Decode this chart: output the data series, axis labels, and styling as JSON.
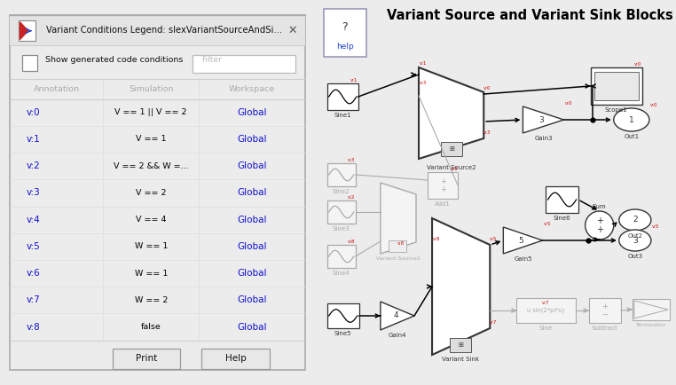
{
  "title": "Variant Source and Variant Sink Blocks",
  "dialog_title": "Variant Conditions Legend: slexVariantSourceAndSi...",
  "checkbox_label": "Show generated code conditions",
  "filter_placeholder": "Filter",
  "col_headers": [
    "Annotation",
    "Simulation",
    "Workspace"
  ],
  "table_rows": [
    [
      "v:0",
      "V == 1 || V == 2",
      "Global"
    ],
    [
      "v:1",
      "V == 1",
      "Global"
    ],
    [
      "v:2",
      "V == 2 && W =...",
      "Global"
    ],
    [
      "v:3",
      "V == 2",
      "Global"
    ],
    [
      "v:4",
      "V == 4",
      "Global"
    ],
    [
      "v:5",
      "W == 1",
      "Global"
    ],
    [
      "v:6",
      "W == 1",
      "Global"
    ],
    [
      "v:7",
      "W == 2",
      "Global"
    ],
    [
      "v:8",
      "false",
      "Global"
    ]
  ],
  "annotation_color": "#1111cc",
  "global_color": "#1111cc",
  "simulation_color": "#000000",
  "header_color": "#aaaaaa",
  "button_labels": [
    "Print",
    "Help"
  ],
  "gray_color": "#aaaaaa",
  "red_color": "#cc0000",
  "dark_color": "#333333",
  "light_gray_fc": "#f4f4f4",
  "white": "#ffffff",
  "panel_bg": "#ececec"
}
